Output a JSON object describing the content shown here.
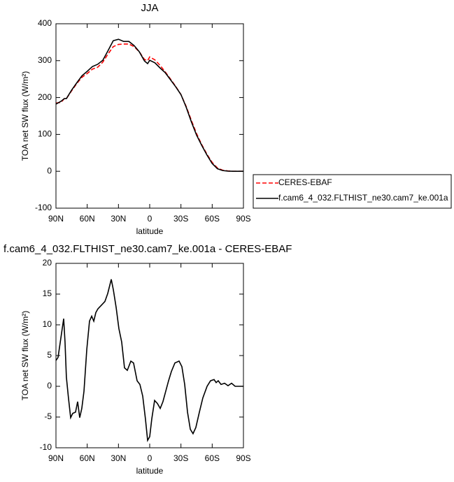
{
  "chart_data": [
    {
      "type": "line",
      "title": "JJA",
      "x_label": "latitude",
      "y_label": "TOA net SW flux (W/m²)",
      "legend": "outside right",
      "x": [
        90,
        85,
        82,
        80,
        75,
        70,
        65,
        60,
        55,
        50,
        45,
        40,
        35,
        30,
        25,
        20,
        15,
        10,
        5,
        2,
        0,
        -5,
        -10,
        -15,
        -20,
        -25,
        -30,
        -35,
        -40,
        -45,
        -50,
        -55,
        -60,
        -65,
        -70,
        -75,
        -80,
        -85,
        -90
      ],
      "series": [
        {
          "name": "CERES-EBAF",
          "color": "#ff0000",
          "style": "dashed",
          "values": [
            185,
            187,
            197,
            197,
            218,
            238,
            255,
            265,
            277,
            282,
            296,
            318,
            338,
            344,
            345,
            345,
            338,
            324,
            303,
            300,
            310,
            302,
            287,
            269,
            250,
            230,
            208,
            176,
            138,
            102,
            72,
            46,
            24,
            9,
            3,
            1,
            0,
            0,
            0
          ]
        },
        {
          "name": "f.cam6_4_032.FLTHIST_ne30.cam7_ke.001a",
          "color": "#000000",
          "style": "solid",
          "values": [
            182,
            190,
            197,
            197,
            220,
            240,
            259,
            271,
            284,
            290,
            301,
            327,
            354,
            358,
            352,
            352,
            341,
            324,
            299,
            292,
            301,
            294,
            280,
            267,
            248,
            229,
            208,
            174,
            134,
            98,
            70,
            44,
            21,
            7,
            2,
            0.5,
            0,
            0,
            0
          ]
        }
      ],
      "xlim": [
        90,
        -90
      ],
      "xticks": [
        {
          "value": 90,
          "label": "90N"
        },
        {
          "value": 60,
          "label": "60N"
        },
        {
          "value": 30,
          "label": "30N"
        },
        0,
        {
          "value": -30,
          "label": "30S"
        },
        {
          "value": -60,
          "label": "60S"
        },
        {
          "value": -90,
          "label": "90S"
        }
      ],
      "ylim": [
        -100,
        400
      ],
      "yticks": [
        -100,
        0,
        100,
        200,
        300,
        400
      ]
    },
    {
      "type": "line",
      "title": "f.cam6_4_032.FLTHIST_ne30.cam7_ke.001a - CERES-EBAF",
      "x_label": "latitude",
      "y_label": "TOA net SW flux (W/m²)",
      "x": [
        90,
        88,
        82.6,
        81.3,
        80,
        78,
        75.9,
        73.9,
        71.2,
        69.2,
        67.2,
        65.2,
        63.1,
        60.4,
        57.8,
        55.7,
        53.7,
        51.7,
        49.7,
        46.3,
        43,
        40.3,
        36.9,
        34.9,
        32.2,
        29.6,
        26.9,
        24.2,
        21.5,
        18.1,
        15.5,
        12.1,
        9.4,
        6.7,
        4.1,
        2,
        0,
        -2,
        -4.7,
        -7.4,
        -10.1,
        -12.7,
        -15.4,
        -18.1,
        -20.8,
        -24.2,
        -28.2,
        -30.9,
        -33.6,
        -36.3,
        -39,
        -41.6,
        -44.3,
        -47.7,
        -51,
        -55.1,
        -58.4,
        -61.8,
        -63.8,
        -65.8,
        -68.5,
        -71.9,
        -75.2,
        -78.6,
        -82,
        -90
      ],
      "series": [
        {
          "color": "#000000",
          "style": "solid",
          "values": [
            4.2,
            4.7,
            11.0,
            7.2,
            1.5,
            -1.9,
            -5.1,
            -4.4,
            -4.2,
            -2.5,
            -5.1,
            -3.6,
            -0.8,
            6.0,
            10.6,
            11.4,
            10.6,
            12.0,
            12.6,
            13.2,
            13.8,
            15.1,
            17.4,
            15.7,
            12.8,
            9.4,
            7.2,
            3.0,
            2.6,
            4.1,
            3.8,
            0.9,
            0.3,
            -1.6,
            -5.3,
            -8.8,
            -8.2,
            -5.3,
            -2.3,
            -2.8,
            -3.6,
            -2.5,
            -0.8,
            0.9,
            2.4,
            3.8,
            4.1,
            3.2,
            0.3,
            -4.2,
            -7.0,
            -7.7,
            -6.7,
            -4.2,
            -1.9,
            0,
            0.9,
            1.1,
            0.6,
            0.9,
            0.3,
            0.5,
            0.1,
            0.5,
            0,
            0
          ]
        }
      ],
      "xlim": [
        90,
        -90
      ],
      "xticks": [
        {
          "value": 90,
          "label": "90N"
        },
        {
          "value": 60,
          "label": "60N"
        },
        {
          "value": 30,
          "label": "30N"
        },
        0,
        {
          "value": -30,
          "label": "30S"
        },
        {
          "value": -60,
          "label": "60S"
        },
        {
          "value": -90,
          "label": "90S"
        }
      ],
      "ylim": [
        -10,
        20
      ],
      "yticks": [
        -10,
        -5,
        0,
        5,
        10,
        15,
        20
      ]
    }
  ]
}
